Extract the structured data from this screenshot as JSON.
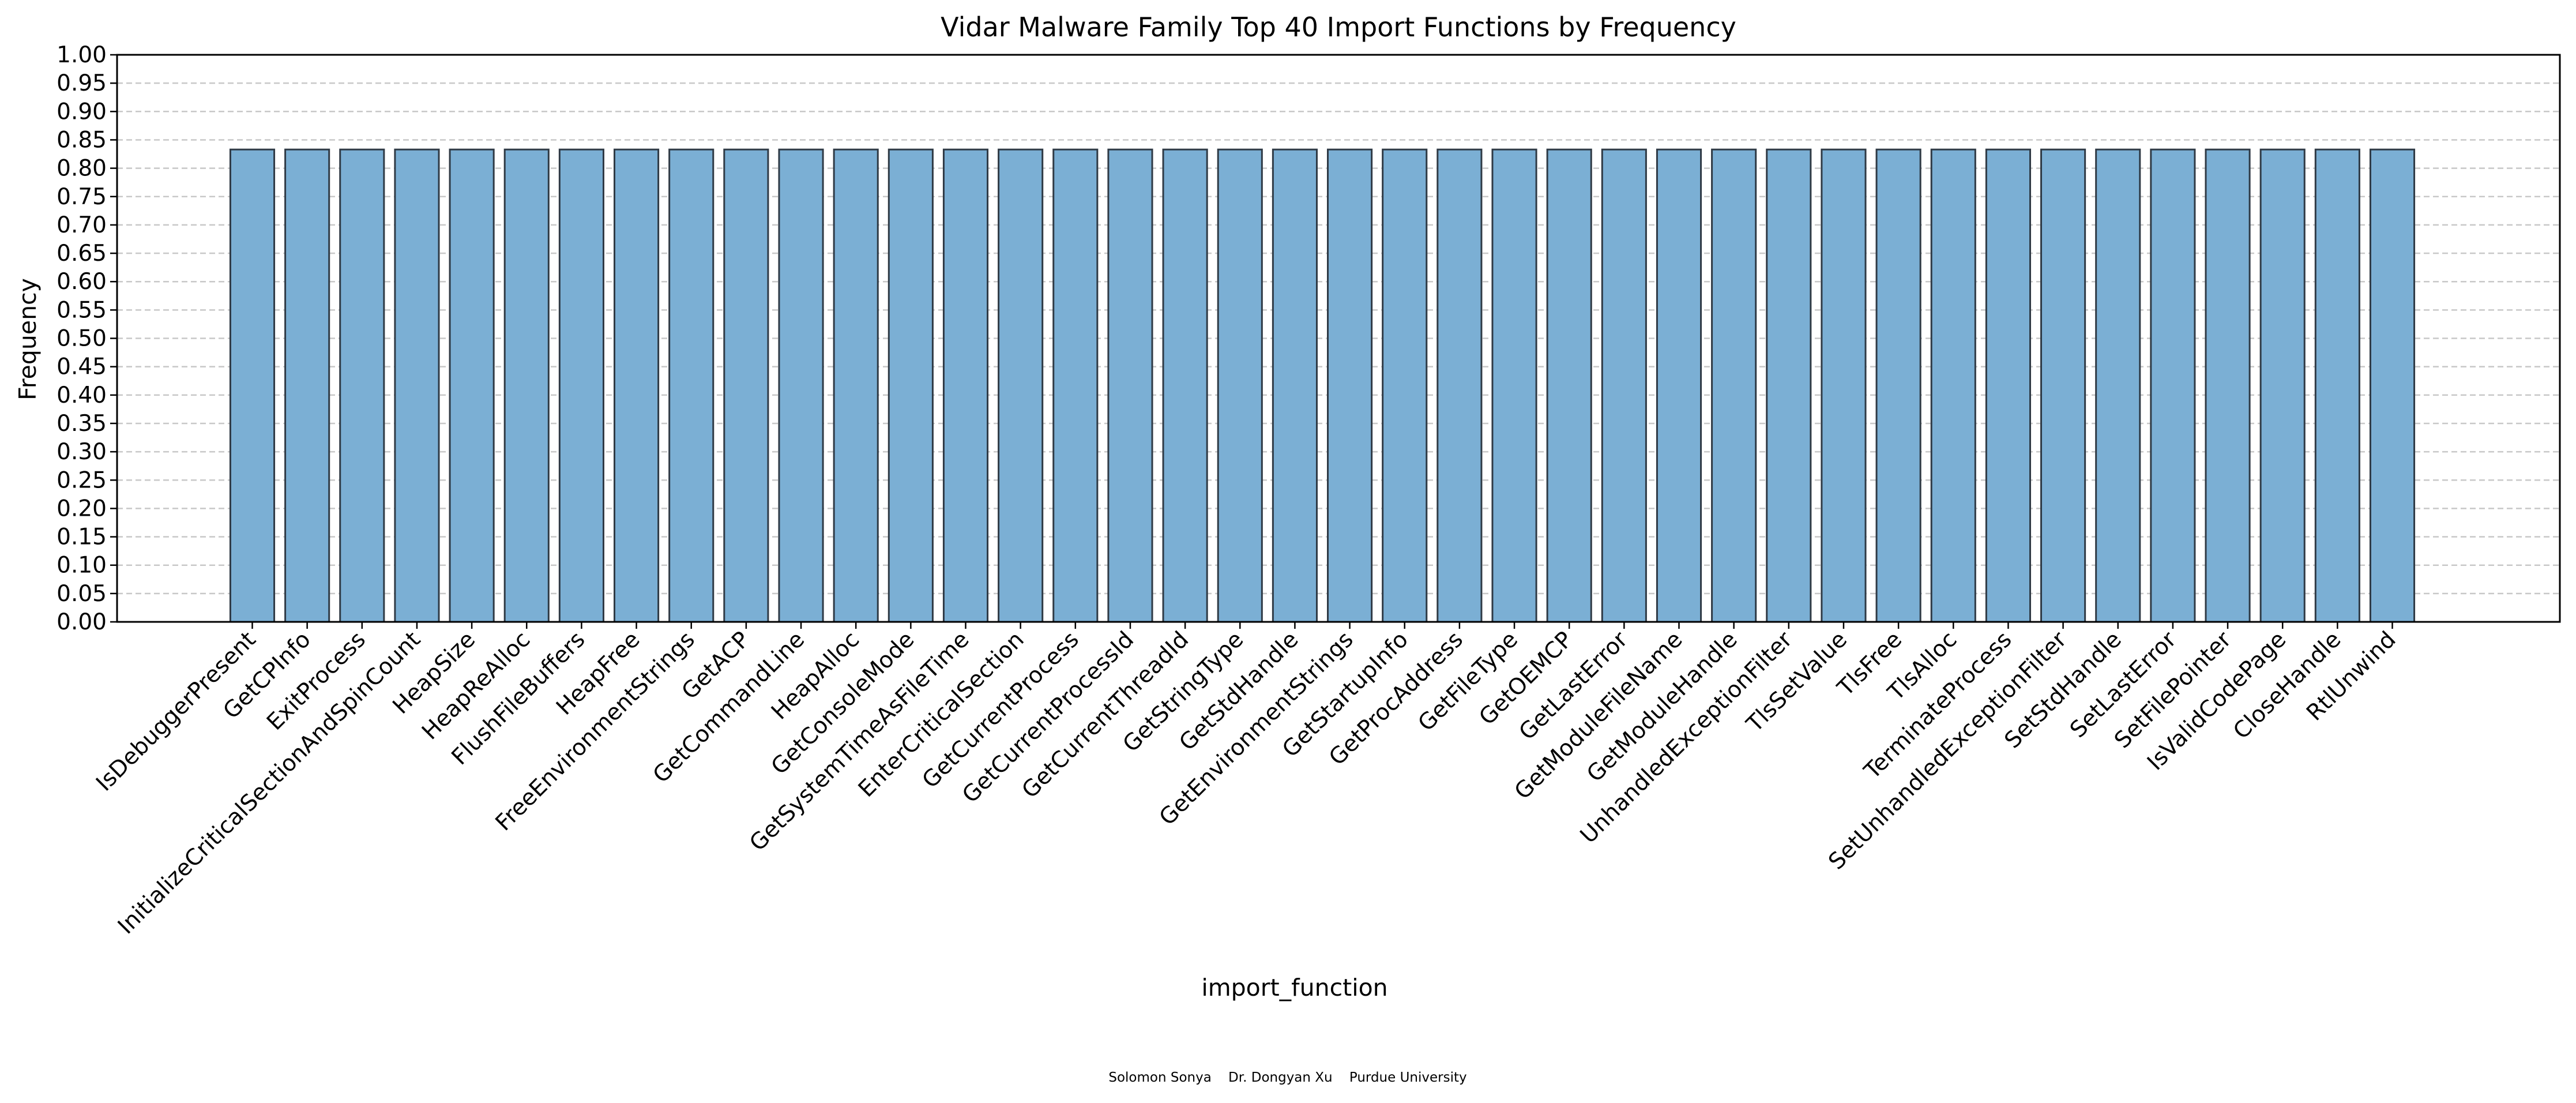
{
  "chart_data": {
    "type": "bar",
    "title": "Vidar Malware Family Top 40 Import Functions by Frequency",
    "xlabel": "import_function",
    "ylabel": "Frequency",
    "ylim": [
      0,
      1.0
    ],
    "yticks": [
      "0.00",
      "0.05",
      "0.10",
      "0.15",
      "0.20",
      "0.25",
      "0.30",
      "0.35",
      "0.40",
      "0.45",
      "0.50",
      "0.55",
      "0.60",
      "0.65",
      "0.70",
      "0.75",
      "0.80",
      "0.85",
      "0.90",
      "0.95",
      "1.00"
    ],
    "grid": "y-dashed",
    "bar_color": "#7bafd4",
    "bar_edge_color": "#2f3a45",
    "categories": [
      "IsDebuggerPresent",
      "GetCPInfo",
      "ExitProcess",
      "InitializeCriticalSectionAndSpinCount",
      "HeapSize",
      "HeapReAlloc",
      "FlushFileBuffers",
      "HeapFree",
      "FreeEnvironmentStrings",
      "GetACP",
      "GetCommandLine",
      "HeapAlloc",
      "GetConsoleMode",
      "GetSystemTimeAsFileTime",
      "EnterCriticalSection",
      "GetCurrentProcess",
      "GetCurrentProcessId",
      "GetCurrentThreadId",
      "GetStringType",
      "GetStdHandle",
      "GetEnvironmentStrings",
      "GetStartupInfo",
      "GetProcAddress",
      "GetFileType",
      "GetOEMCP",
      "GetLastError",
      "GetModuleFileName",
      "GetModuleHandle",
      "UnhandledExceptionFilter",
      "TlsSetValue",
      "TlsFree",
      "TlsAlloc",
      "TerminateProcess",
      "SetUnhandledExceptionFilter",
      "SetStdHandle",
      "SetLastError",
      "SetFilePointer",
      "IsValidCodePage",
      "CloseHandle",
      "RtlUnwind"
    ],
    "values": [
      0.833,
      0.833,
      0.833,
      0.833,
      0.833,
      0.833,
      0.833,
      0.833,
      0.833,
      0.833,
      0.833,
      0.833,
      0.833,
      0.833,
      0.833,
      0.833,
      0.833,
      0.833,
      0.833,
      0.833,
      0.833,
      0.833,
      0.833,
      0.833,
      0.833,
      0.833,
      0.833,
      0.833,
      0.833,
      0.833,
      0.833,
      0.833,
      0.833,
      0.833,
      0.833,
      0.833,
      0.833,
      0.833,
      0.833,
      0.833
    ]
  },
  "credit": "Solomon Sonya    Dr. Dongyan Xu    Purdue University"
}
